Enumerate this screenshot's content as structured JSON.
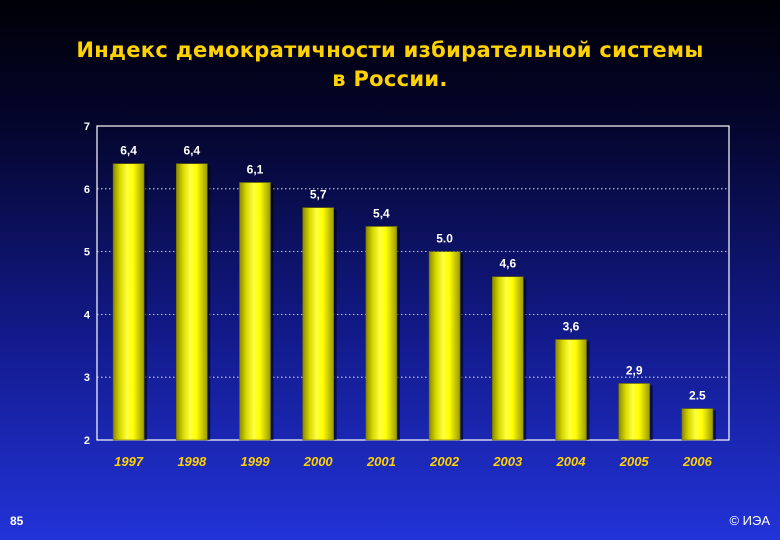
{
  "title": {
    "line1": "Индекс демократичности избирательной системы",
    "line2": "в России."
  },
  "footer": {
    "slide_number": "85",
    "copyright": "© ИЭА"
  },
  "colors": {
    "bar": "#ffff00",
    "bar_dark": "#8a8a00",
    "title": "#ffd200",
    "text": "#ffffff"
  },
  "chart_data": {
    "type": "bar",
    "title": "Индекс демократичности избирательной системы в России.",
    "xlabel": "",
    "ylabel": "",
    "ylim": [
      2,
      7
    ],
    "yticks": [
      "2",
      "3",
      "4",
      "5",
      "6",
      "7"
    ],
    "grid": true,
    "legend": "none",
    "categories": [
      "1997",
      "1998",
      "1999",
      "2000",
      "2001",
      "2002",
      "2003",
      "2004",
      "2005",
      "2006"
    ],
    "values": [
      6.4,
      6.4,
      6.1,
      5.7,
      5.4,
      5.0,
      4.6,
      3.6,
      2.9,
      2.5
    ],
    "labels": [
      "6,4",
      "6,4",
      "6,1",
      "5,7",
      "5,4",
      "5.0",
      "4,6",
      "3,6",
      "2,9",
      "2.5"
    ]
  }
}
